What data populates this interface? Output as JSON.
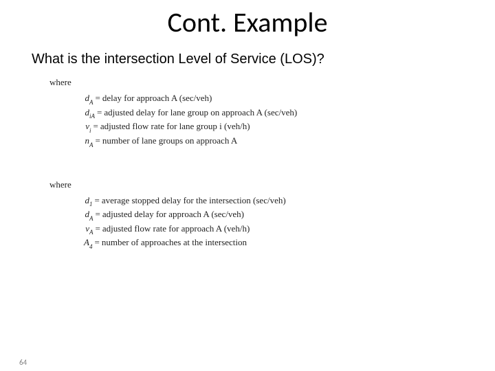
{
  "slide": {
    "title": "Cont. Example",
    "question": "What is the intersection Level of Service (LOS)?",
    "page_number": "64"
  },
  "blocks": [
    {
      "where": "where",
      "defs": [
        {
          "var": "d",
          "sub": "A",
          "text": "delay for approach A (sec/veh)"
        },
        {
          "var": "d",
          "sub": "iA",
          "text": "adjusted delay for lane group on approach A (sec/veh)"
        },
        {
          "var": "v",
          "sub": "i",
          "text": "adjusted flow rate for lane group i (veh/h)"
        },
        {
          "var": "n",
          "sub": "A",
          "text": "number of lane groups on approach A"
        }
      ]
    },
    {
      "where": "where",
      "defs": [
        {
          "var": "d",
          "sub": "1",
          "text": "average stopped delay for the intersection (sec/veh)"
        },
        {
          "var": "d",
          "sub": "A",
          "text": "adjusted delay for approach A (sec/veh)"
        },
        {
          "var": "v",
          "sub": "A",
          "text": "adjusted flow rate for approach A (veh/h)"
        },
        {
          "var": "A",
          "sub": "4",
          "text": "number of approaches at the intersection"
        }
      ]
    }
  ],
  "style": {
    "background": "#ffffff",
    "title_fontsize": 40,
    "question_fontsize": 20,
    "def_fontsize": 13,
    "text_color": "#000000",
    "muted_color": "#808080"
  }
}
